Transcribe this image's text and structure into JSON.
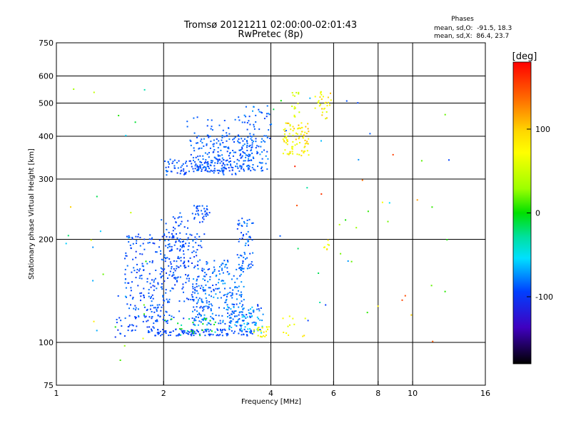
{
  "chart_data": {
    "type": "scatter",
    "title": "Tromsø 20121211 02:00:00-02:01:43",
    "subtitle": "RwPretec (8p)",
    "xlabel": "Frequency [MHz]",
    "ylabel": "Stationary phase Virtual Height [km]",
    "x_scale": "log2",
    "y_scale": "log",
    "xlim": [
      1,
      16
    ],
    "ylim": [
      75,
      750
    ],
    "x_ticks": [
      1,
      2,
      4,
      6,
      8,
      10,
      16
    ],
    "x_tick_labels": [
      "1",
      "2",
      "4",
      "6",
      "8",
      "10",
      "16"
    ],
    "x_grid": [
      2,
      4,
      6,
      8,
      10
    ],
    "y_ticks": [
      75,
      100,
      200,
      300,
      400,
      500,
      600,
      750
    ],
    "y_tick_labels": [
      "75",
      "100",
      "200",
      "300",
      "400",
      "500",
      "600",
      "750"
    ],
    "y_grid": [
      100,
      200,
      300,
      400,
      500,
      600
    ],
    "grid": true,
    "phase_box": {
      "title": "Phases",
      "line_o": "mean, sd,O:  -91.5, 18.3",
      "line_x": "mean, sd,X:  86.4, 23.7"
    },
    "colorbar": {
      "unit": "[deg]",
      "range": [
        -180,
        180
      ],
      "ticks": [
        100,
        0,
        -100
      ],
      "tick_labels": [
        "100",
        "0",
        "-100"
      ],
      "colormap": "rainbow"
    },
    "series": [
      {
        "clusters": [
          {
            "f": [
              1.45,
              1.68
            ],
            "h": [
              104,
              120
            ],
            "phase": [
              -110,
              -90
            ],
            "count": 18
          },
          {
            "f": [
              1.6,
              2.1
            ],
            "h": [
              108,
              150
            ],
            "phase": [
              -110,
              -80
            ],
            "count": 40
          },
          {
            "f": [
              1.8,
              3.6
            ],
            "h": [
              105,
              110
            ],
            "phase": [
              -105,
              -90
            ],
            "count": 130
          },
          {
            "f": [
              1.55,
              2.6
            ],
            "h": [
              115,
              210
            ],
            "phase": [
              -110,
              -80
            ],
            "count": 300
          },
          {
            "f": [
              1.95,
              2.35
            ],
            "h": [
              150,
              240
            ],
            "phase": [
              -110,
              -80
            ],
            "count": 90
          },
          {
            "f": [
              2.4,
              2.7
            ],
            "h": [
              225,
              252
            ],
            "phase": [
              -105,
              -85
            ],
            "count": 35
          },
          {
            "f": [
              2.4,
              3.35
            ],
            "h": [
              112,
              175
            ],
            "phase": [
              -105,
              -60
            ],
            "count": 240
          },
          {
            "f": [
              3.0,
              3.8
            ],
            "h": [
              107,
              130
            ],
            "phase": [
              -110,
              -40
            ],
            "count": 90
          },
          {
            "f": [
              3.2,
              3.55
            ],
            "h": [
              162,
              235
            ],
            "phase": [
              -105,
              -70
            ],
            "count": 60
          },
          {
            "f": [
              2.0,
              2.8
            ],
            "h": [
              105,
              118
            ],
            "phase": [
              -40,
              20
            ],
            "count": 25
          },
          {
            "f": [
              3.55,
              3.95
            ],
            "h": [
              104,
              112
            ],
            "phase": [
              80,
              110
            ],
            "count": 22
          },
          {
            "f": [
              2.0,
              3.2
            ],
            "h": [
              310,
              345
            ],
            "phase": [
              -110,
              -80
            ],
            "count": 120
          },
          {
            "f": [
              2.35,
              3.9
            ],
            "h": [
              318,
              405
            ],
            "phase": [
              -105,
              -75
            ],
            "count": 220
          },
          {
            "f": [
              3.3,
              4.0
            ],
            "h": [
              345,
              500
            ],
            "phase": [
              -105,
              -65
            ],
            "count": 45
          },
          {
            "f": [
              2.3,
              3.6
            ],
            "h": [
              385,
              460
            ],
            "phase": [
              -100,
              -80
            ],
            "count": 40
          },
          {
            "f": [
              4.3,
              5.1
            ],
            "h": [
              350,
              440
            ],
            "phase": [
              85,
              120
            ],
            "count": 90
          },
          {
            "f": [
              4.55,
              4.8
            ],
            "h": [
              455,
              545
            ],
            "phase": [
              70,
              110
            ],
            "count": 15
          },
          {
            "f": [
              5.3,
              5.9
            ],
            "h": [
              450,
              545
            ],
            "phase": [
              80,
              120
            ],
            "count": 30
          },
          {
            "f": [
              4.3,
              5.0
            ],
            "h": [
              104,
              120
            ],
            "phase": [
              80,
              110
            ],
            "count": 12
          },
          {
            "f": [
              5.55,
              5.8
            ],
            "h": [
              185,
              200
            ],
            "phase": [
              80,
              110
            ],
            "count": 8
          },
          {
            "f": [
              1.05,
              1.8
            ],
            "h": [
              80,
              580
            ],
            "phase": [
              -110,
              120
            ],
            "count": 30
          },
          {
            "f": [
              4.0,
              13.0
            ],
            "h": [
              100,
              600
            ],
            "phase": [
              -110,
              170
            ],
            "count": 45
          }
        ]
      }
    ]
  }
}
